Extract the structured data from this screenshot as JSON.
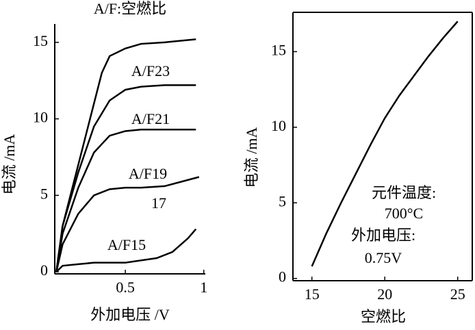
{
  "chart_data": [
    {
      "type": "line",
      "title": "A/F:空燃比",
      "x_label": "外加电压 /V",
      "y_label": "电流 /mA",
      "xlim": [
        0.05,
        1.01
      ],
      "ylim": [
        -0.13,
        16.2
      ],
      "xticks": [
        0.5,
        1
      ],
      "yticks": [
        0,
        5,
        10,
        15
      ],
      "color": "#000000",
      "series": [
        {
          "name": "A/F23",
          "x": [
            0.06,
            0.1,
            0.2,
            0.3,
            0.35,
            0.4,
            0.5,
            0.6,
            0.75,
            0.95
          ],
          "values": [
            0,
            3,
            7,
            11,
            13,
            14.1,
            14.6,
            14.9,
            15,
            15.2
          ]
        },
        {
          "name": "A/F21",
          "x": [
            0.06,
            0.1,
            0.2,
            0.3,
            0.4,
            0.5,
            0.6,
            0.75,
            0.95
          ],
          "values": [
            0,
            3,
            6.5,
            9.5,
            11.2,
            11.9,
            12.1,
            12.2,
            12.2
          ]
        },
        {
          "name": "A/F19",
          "x": [
            0.06,
            0.1,
            0.2,
            0.3,
            0.4,
            0.5,
            0.6,
            0.75,
            0.95
          ],
          "values": [
            0,
            2.5,
            5.5,
            7.8,
            8.9,
            9.2,
            9.3,
            9.3,
            9.3
          ]
        },
        {
          "name": "17",
          "x": [
            0.06,
            0.1,
            0.2,
            0.3,
            0.4,
            0.5,
            0.6,
            0.75,
            0.97
          ],
          "values": [
            0,
            1.8,
            3.8,
            5,
            5.4,
            5.5,
            5.5,
            5.6,
            6.2
          ]
        },
        {
          "name": "A/F15",
          "x": [
            0.06,
            0.1,
            0.2,
            0.3,
            0.5,
            0.7,
            0.8,
            0.9,
            0.95
          ],
          "values": [
            0,
            0.4,
            0.5,
            0.6,
            0.6,
            0.9,
            1.3,
            2.2,
            2.8
          ]
        }
      ]
    },
    {
      "type": "line",
      "x_label": "空燃比",
      "y_label": "电流 /mA",
      "xlim": [
        13.7,
        26
      ],
      "ylim": [
        -0.15,
        17.6
      ],
      "xticks": [
        15,
        20,
        25
      ],
      "yticks": [
        0,
        5,
        10,
        15
      ],
      "color": "#000000",
      "box": true,
      "annotations": [
        "元件温度:",
        "700°C",
        "外加电压:",
        "0.75V"
      ],
      "series": [
        {
          "x": [
            15,
            16,
            17,
            18,
            19,
            20,
            21,
            22,
            23,
            24,
            25
          ],
          "values": [
            0.8,
            3,
            5,
            6.9,
            8.8,
            10.6,
            12.1,
            13.4,
            14.7,
            15.9,
            17
          ]
        }
      ]
    }
  ]
}
